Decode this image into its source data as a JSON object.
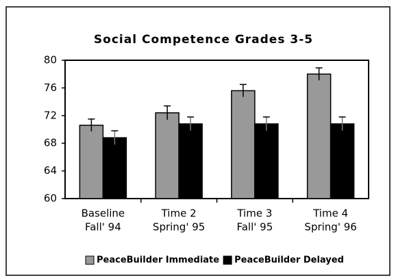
{
  "chart_data": {
    "type": "bar",
    "title": "Social Competence Grades 3-5",
    "categories": [
      [
        "Baseline",
        "Fall' 94"
      ],
      [
        "Time 2",
        "Spring' 95"
      ],
      [
        "Time 3",
        "Fall' 95"
      ],
      [
        "Time 4",
        "Spring' 96"
      ]
    ],
    "series": [
      {
        "name": "PeaceBuilder Immediate",
        "color": "#999999",
        "values": [
          70.6,
          72.4,
          75.6,
          78.0
        ],
        "errors": [
          0.9,
          1.0,
          0.9,
          0.9
        ]
      },
      {
        "name": "PeaceBuilder Delayed",
        "color": "#000000",
        "values": [
          68.8,
          70.8,
          70.8,
          70.8
        ],
        "errors": [
          1.0,
          1.0,
          1.0,
          1.0
        ]
      }
    ],
    "ylim": [
      60,
      80
    ],
    "yticks": [
      60,
      64,
      68,
      72,
      76,
      80
    ],
    "grid": false,
    "legend": "bottom"
  }
}
